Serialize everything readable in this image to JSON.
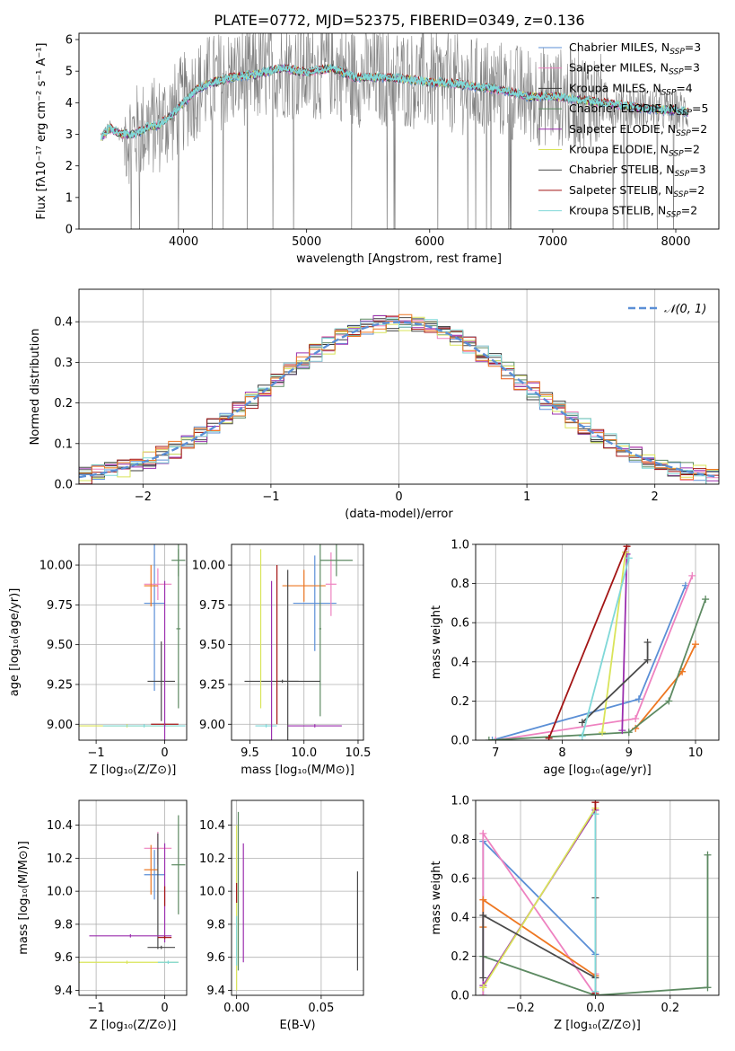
{
  "figure_title": "PLATE=0772, MJD=52375, FIBERID=0349, z=0.136",
  "colors": {
    "chabrier_miles": "#5b8fd6",
    "salpeter_miles": "#ee82c0",
    "kroupa_miles": "#3b3b3b",
    "chabrier_elodie": "#5d8a62",
    "salpeter_elodie": "#9b2fae",
    "kroupa_elodie": "#d9e45a",
    "chabrier_stelib": "#4a4a4a",
    "salpeter_stelib": "#a31515",
    "kroupa_stelib": "#7fd8d8",
    "orange": "#ee7722",
    "data_gray": "#808080"
  },
  "chart_data": [
    {
      "id": "spectrum",
      "type": "line",
      "xlabel": "wavelength [Angstrom, rest frame]",
      "ylabel": "Flux [fλ10⁻¹⁷ erg cm⁻² s⁻¹ A⁻¹]",
      "xlim": [
        3150,
        8350
      ],
      "ylim": [
        0,
        6.2
      ],
      "xticks": [
        "4000",
        "5000",
        "6000",
        "7000",
        "8000"
      ],
      "xtick_values": [
        4000,
        5000,
        6000,
        7000,
        8000
      ],
      "yticks": [
        "0",
        "1",
        "2",
        "3",
        "4",
        "5",
        "6"
      ],
      "ytick_values": [
        0,
        1,
        2,
        3,
        4,
        5,
        6
      ],
      "legend_position": "top-right",
      "legend": [
        {
          "label": "Chabrier MILES, N",
          "sub": "SSP",
          "suffix": "=3",
          "color": "#5b8fd6"
        },
        {
          "label": "Salpeter MILES, N",
          "sub": "SSP",
          "suffix": "=3",
          "color": "#ee82c0"
        },
        {
          "label": "Kroupa MILES, N",
          "sub": "SSP",
          "suffix": "=4",
          "color": "#3b3b3b"
        },
        {
          "label": "Chabrier ELODIE, N",
          "sub": "SSP",
          "suffix": "=5",
          "color": "#5d8a62"
        },
        {
          "label": "Salpeter ELODIE, N",
          "sub": "SSP",
          "suffix": "=2",
          "color": "#9b2fae"
        },
        {
          "label": "Kroupa ELODIE, N",
          "sub": "SSP",
          "suffix": "=2",
          "color": "#d9e45a"
        },
        {
          "label": "Chabrier STELIB, N",
          "sub": "SSP",
          "suffix": "=3",
          "color": "#4a4a4a"
        },
        {
          "label": "Salpeter STELIB, N",
          "sub": "SSP",
          "suffix": "=2",
          "color": "#a31515"
        },
        {
          "label": "Kroupa STELIB, N",
          "sub": "SSP",
          "suffix": "=2",
          "color": "#7fd8d8"
        }
      ],
      "model_continuum": {
        "x": [
          3330,
          3400,
          3500,
          3600,
          3700,
          3800,
          3900,
          4000,
          4100,
          4200,
          4400,
          4600,
          4800,
          5000,
          5200,
          5400,
          5600,
          5800,
          6000,
          6200,
          6400,
          6600,
          6800,
          7000,
          7200,
          7400,
          7600,
          7800,
          8000,
          8100
        ],
        "y": [
          2.9,
          3.2,
          3.0,
          3.0,
          3.2,
          3.3,
          3.6,
          4.0,
          4.4,
          4.6,
          4.8,
          4.9,
          5.1,
          4.95,
          5.1,
          4.8,
          4.8,
          4.75,
          4.65,
          4.6,
          4.5,
          4.4,
          4.2,
          4.2,
          4.1,
          4.0,
          3.9,
          3.8,
          3.75,
          3.7
        ]
      }
    },
    {
      "id": "residuals",
      "type": "line",
      "xlabel": "(data-model)/error",
      "ylabel": "Normed distribution",
      "xlim": [
        -2.5,
        2.5
      ],
      "ylim": [
        0,
        0.48
      ],
      "xticks": [
        "−2",
        "−1",
        "0",
        "1",
        "2"
      ],
      "xtick_values": [
        -2,
        -1,
        0,
        1,
        2
      ],
      "yticks": [
        "0.0",
        "0.1",
        "0.2",
        "0.3",
        "0.4"
      ],
      "ytick_values": [
        0,
        0.1,
        0.2,
        0.3,
        0.4
      ],
      "legend_label": "𝒩(0, 1)",
      "legend_position": "top-right",
      "grid": true
    },
    {
      "id": "age_vs_Z",
      "type": "scatter",
      "xlabel": "Z [log₁₀(Z/Z⊙)]",
      "ylabel": "age  [log₁₀(age/yr)]",
      "xlim": [
        -1.25,
        0.32
      ],
      "ylim": [
        8.9,
        10.13
      ],
      "xticks": [
        "−1",
        "0"
      ],
      "xtick_values": [
        -1,
        0
      ],
      "yticks": [
        "9.00",
        "9.25",
        "9.50",
        "9.75",
        "10.00"
      ],
      "ytick_values": [
        9.0,
        9.25,
        9.5,
        9.75,
        10.0
      ],
      "grid": true,
      "points": [
        {
          "x": -0.15,
          "y": 9.76,
          "xerr": 0.15,
          "yerr": 0.55,
          "color": "#5b8fd6"
        },
        {
          "x": -0.1,
          "y": 9.88,
          "xerr": 0.2,
          "yerr": 0.1,
          "color": "#ee82c0"
        },
        {
          "x": -0.2,
          "y": 9.87,
          "xerr": 0.1,
          "yerr": 0.13,
          "color": "#ee7722"
        },
        {
          "x": 0.2,
          "y": 10.03,
          "xerr": 0.1,
          "yerr": 0.1,
          "color": "#5d8a62"
        },
        {
          "x": 0.2,
          "y": 9.6,
          "xerr": 0.03,
          "yerr": 0.5,
          "color": "#5d8a62"
        },
        {
          "x": -0.05,
          "y": 9.27,
          "xerr": 0.2,
          "yerr": 0.25,
          "color": "#4a4a4a"
        },
        {
          "x": -0.55,
          "y": 8.99,
          "xerr": 0.75,
          "yerr": 0.01,
          "color": "#d9e45a"
        },
        {
          "x": -0.3,
          "y": 8.99,
          "xerr": 0.6,
          "yerr": 0.01,
          "color": "#7fd8d8"
        },
        {
          "x": 0.0,
          "y": 9.0,
          "xerr": 0.2,
          "yerr": 0.01,
          "color": "#a31515"
        },
        {
          "x": 0.0,
          "y": 9.4,
          "xerr": 0.0,
          "yerr": 0.5,
          "color": "#9b2fae"
        }
      ]
    },
    {
      "id": "age_vs_mass",
      "type": "scatter",
      "xlabel": "mass [log₁₀(M/M⊙)]",
      "ylabel": "",
      "xlim": [
        9.33,
        10.55
      ],
      "ylim": [
        8.9,
        10.13
      ],
      "xticks": [
        "9.5",
        "10.0",
        "10.5"
      ],
      "xtick_values": [
        9.5,
        10.0,
        10.5
      ],
      "yticks": [
        "9.00",
        "9.25",
        "9.50",
        "9.75",
        "10.00"
      ],
      "ytick_values": [
        9.0,
        9.25,
        9.5,
        9.75,
        10.0
      ],
      "grid": true,
      "points": [
        {
          "x": 10.1,
          "y": 9.76,
          "xerr": 0.2,
          "yerr": 0.3,
          "color": "#5b8fd6"
        },
        {
          "x": 10.25,
          "y": 9.88,
          "xerr": 0.05,
          "yerr": 0.2,
          "color": "#ee82c0"
        },
        {
          "x": 10.0,
          "y": 9.87,
          "xerr": 0.2,
          "yerr": 0.1,
          "color": "#ee7722"
        },
        {
          "x": 10.3,
          "y": 10.03,
          "xerr": 0.15,
          "yerr": 0.1,
          "color": "#5d8a62"
        },
        {
          "x": 10.15,
          "y": 9.6,
          "xerr": 0.01,
          "yerr": 0.55,
          "color": "#5d8a62"
        },
        {
          "x": 9.8,
          "y": 9.27,
          "xerr": 0.35,
          "yerr": 0.01,
          "color": "#4a4a4a"
        },
        {
          "x": 9.85,
          "y": 9.27,
          "xerr": 0.1,
          "yerr": 0.7,
          "color": "#4a4a4a"
        },
        {
          "x": 9.6,
          "y": 9.6,
          "xerr": 0.0,
          "yerr": 0.5,
          "color": "#d9e45a"
        },
        {
          "x": 9.65,
          "y": 8.99,
          "xerr": 0.1,
          "yerr": 0.01,
          "color": "#7fd8d8"
        },
        {
          "x": 9.75,
          "y": 9.5,
          "xerr": 0.0,
          "yerr": 0.5,
          "color": "#a31515"
        },
        {
          "x": 10.1,
          "y": 8.99,
          "xerr": 0.25,
          "yerr": 0.01,
          "color": "#9b2fae"
        },
        {
          "x": 9.7,
          "y": 9.4,
          "xerr": 0.0,
          "yerr": 0.5,
          "color": "#9b2fae"
        }
      ]
    },
    {
      "id": "weight_vs_age",
      "type": "line",
      "xlabel": "age  [log₁₀(age/yr)]",
      "ylabel": "mass weight",
      "xlim": [
        6.7,
        10.35
      ],
      "ylim": [
        0,
        1.0
      ],
      "xticks": [
        "7",
        "8",
        "9",
        "10"
      ],
      "xtick_values": [
        7,
        8,
        9,
        10
      ],
      "yticks": [
        "0.0",
        "0.2",
        "0.4",
        "0.6",
        "0.8",
        "1.0"
      ],
      "ytick_values": [
        0,
        0.2,
        0.4,
        0.6,
        0.8,
        1.0
      ],
      "grid": true,
      "series": [
        {
          "color": "#5b8fd6",
          "x": [
            6.95,
            9.15,
            9.85
          ],
          "y": [
            0.0,
            0.21,
            0.79
          ]
        },
        {
          "color": "#ee82c0",
          "x": [
            7.0,
            9.1,
            9.95
          ],
          "y": [
            0.0,
            0.11,
            0.84
          ]
        },
        {
          "color": "#ee7722",
          "x": [
            9.1,
            9.8,
            10.0
          ],
          "y": [
            0.06,
            0.35,
            0.49
          ]
        },
        {
          "color": "#5d8a62",
          "x": [
            6.9,
            9.0,
            9.6,
            10.15
          ],
          "y": [
            0.0,
            0.04,
            0.2,
            0.72
          ]
        },
        {
          "color": "#9b2fae",
          "x": [
            8.9,
            8.97
          ],
          "y": [
            0.05,
            0.95
          ]
        },
        {
          "color": "#d9e45a",
          "x": [
            8.6,
            8.95
          ],
          "y": [
            0.04,
            0.96
          ]
        },
        {
          "color": "#4a4a4a",
          "x": [
            8.3,
            9.28,
            9.28
          ],
          "y": [
            0.09,
            0.41,
            0.5
          ]
        },
        {
          "color": "#a31515",
          "x": [
            7.8,
            8.97
          ],
          "y": [
            0.01,
            0.99
          ]
        },
        {
          "color": "#7fd8d8",
          "x": [
            8.3,
            9.0
          ],
          "y": [
            0.02,
            0.93
          ]
        }
      ]
    },
    {
      "id": "mass_vs_Z",
      "type": "scatter",
      "xlabel": "Z [log₁₀(Z/Z⊙)]",
      "ylabel": "mass [log₁₀(M/M⊙)]",
      "xlim": [
        -1.25,
        0.32
      ],
      "ylim": [
        9.37,
        10.55
      ],
      "xticks": [
        "−1",
        "0"
      ],
      "xtick_values": [
        -1,
        0
      ],
      "yticks": [
        "9.4",
        "9.6",
        "9.8",
        "10.0",
        "10.2",
        "10.4"
      ],
      "ytick_values": [
        9.4,
        9.6,
        9.8,
        10.0,
        10.2,
        10.4
      ],
      "grid": true,
      "points": [
        {
          "x": -0.15,
          "y": 10.1,
          "xerr": 0.15,
          "yerr": 0.15,
          "color": "#5b8fd6"
        },
        {
          "x": -0.1,
          "y": 10.26,
          "xerr": 0.2,
          "yerr": 0.1,
          "color": "#ee82c0"
        },
        {
          "x": -0.2,
          "y": 10.13,
          "xerr": 0.1,
          "yerr": 0.15,
          "color": "#ee7722"
        },
        {
          "x": 0.2,
          "y": 10.16,
          "xerr": 0.1,
          "yerr": 0.3,
          "color": "#5d8a62"
        },
        {
          "x": -0.05,
          "y": 9.66,
          "xerr": 0.2,
          "yerr": 0.01,
          "color": "#4a4a4a"
        },
        {
          "x": -0.1,
          "y": 10.0,
          "xerr": 0.0,
          "yerr": 0.35,
          "color": "#4a4a4a"
        },
        {
          "x": -0.55,
          "y": 9.57,
          "xerr": 0.75,
          "yerr": 0.01,
          "color": "#d9e45a"
        },
        {
          "x": 0.05,
          "y": 9.57,
          "xerr": 0.15,
          "yerr": 0.01,
          "color": "#7fd8d8"
        },
        {
          "x": -0.5,
          "y": 9.73,
          "xerr": 0.6,
          "yerr": 0.01,
          "color": "#9b2fae"
        },
        {
          "x": 0.0,
          "y": 9.99,
          "xerr": 0.0,
          "yerr": 0.3,
          "color": "#9b2fae"
        },
        {
          "x": 0.0,
          "y": 9.72,
          "xerr": 0.1,
          "yerr": 0.01,
          "color": "#a31515"
        },
        {
          "x": 0.0,
          "y": 9.97,
          "xerr": 0.0,
          "yerr": 0.06,
          "color": "#a31515"
        }
      ]
    },
    {
      "id": "mass_vs_ebv",
      "type": "scatter",
      "xlabel": "E(B-V)",
      "ylabel": "",
      "xlim": [
        -0.003,
        0.075
      ],
      "ylim": [
        9.37,
        10.55
      ],
      "xticks": [
        "0.00",
        "0.05"
      ],
      "xtick_values": [
        0.0,
        0.05
      ],
      "yticks": [
        "9.4",
        "9.6",
        "9.8",
        "10.0",
        "10.2",
        "10.4"
      ],
      "ytick_values": [
        9.4,
        9.6,
        9.8,
        10.0,
        10.2,
        10.4
      ],
      "grid": true,
      "points": [
        {
          "x": 0.0,
          "y": 9.9,
          "xerr": 0.0,
          "yerr": 0.5,
          "color": "#d9e45a"
        },
        {
          "x": 0.001,
          "y": 10.0,
          "xerr": 0.0,
          "yerr": 0.48,
          "color": "#5d8a62"
        },
        {
          "x": 0.0,
          "y": 9.99,
          "xerr": 0.0,
          "yerr": 0.06,
          "color": "#a31515"
        },
        {
          "x": 0.0,
          "y": 9.7,
          "xerr": 0.0,
          "yerr": 0.15,
          "color": "#7fd8d8"
        },
        {
          "x": 0.004,
          "y": 9.93,
          "xerr": 0.0,
          "yerr": 0.36,
          "color": "#9b2fae"
        },
        {
          "x": 0.0715,
          "y": 9.82,
          "xerr": 0.0,
          "yerr": 0.3,
          "color": "#4a4a4a"
        }
      ]
    },
    {
      "id": "weight_vs_Z",
      "type": "line",
      "xlabel": "Z [log₁₀(Z/Z⊙)]",
      "ylabel": "mass weight",
      "xlim": [
        -0.32,
        0.33
      ],
      "ylim": [
        0,
        1.0
      ],
      "xticks": [
        "−0.2",
        "0.0",
        "0.2"
      ],
      "xtick_values": [
        -0.2,
        0.0,
        0.2
      ],
      "yticks": [
        "0.0",
        "0.2",
        "0.4",
        "0.6",
        "0.8",
        "1.0"
      ],
      "ytick_values": [
        0,
        0.2,
        0.4,
        0.6,
        0.8,
        1.0
      ],
      "grid": true,
      "series": [
        {
          "color": "#5b8fd6",
          "x": [
            -0.3,
            -0.3,
            0.0,
            0.0
          ],
          "y": [
            0.0,
            0.79,
            0.21,
            0.0
          ]
        },
        {
          "color": "#ee82c0",
          "x": [
            -0.3,
            -0.3,
            0.0,
            0.0
          ],
          "y": [
            0.0,
            0.83,
            0.0,
            0.11
          ]
        },
        {
          "color": "#ee7722",
          "x": [
            -0.3,
            -0.3,
            0.0
          ],
          "y": [
            0.35,
            0.49,
            0.1
          ]
        },
        {
          "color": "#5d8a62",
          "x": [
            -0.3,
            0.0,
            0.3,
            0.3
          ],
          "y": [
            0.2,
            0.0,
            0.04,
            0.72
          ]
        },
        {
          "color": "#9b2fae",
          "x": [
            -0.3,
            0.0
          ],
          "y": [
            0.05,
            0.95
          ]
        },
        {
          "color": "#d9e45a",
          "x": [
            -0.3,
            0.0
          ],
          "y": [
            0.04,
            0.96
          ]
        },
        {
          "color": "#4a4a4a",
          "x": [
            -0.3,
            -0.3,
            0.0,
            0.0
          ],
          "y": [
            0.09,
            0.41,
            0.09,
            0.5
          ]
        },
        {
          "color": "#a31515",
          "x": [
            0.0,
            0.0
          ],
          "y": [
            0.01,
            0.99
          ]
        },
        {
          "color": "#7fd8d8",
          "x": [
            0.0,
            0.0
          ],
          "y": [
            0.02,
            0.93
          ]
        }
      ]
    }
  ]
}
